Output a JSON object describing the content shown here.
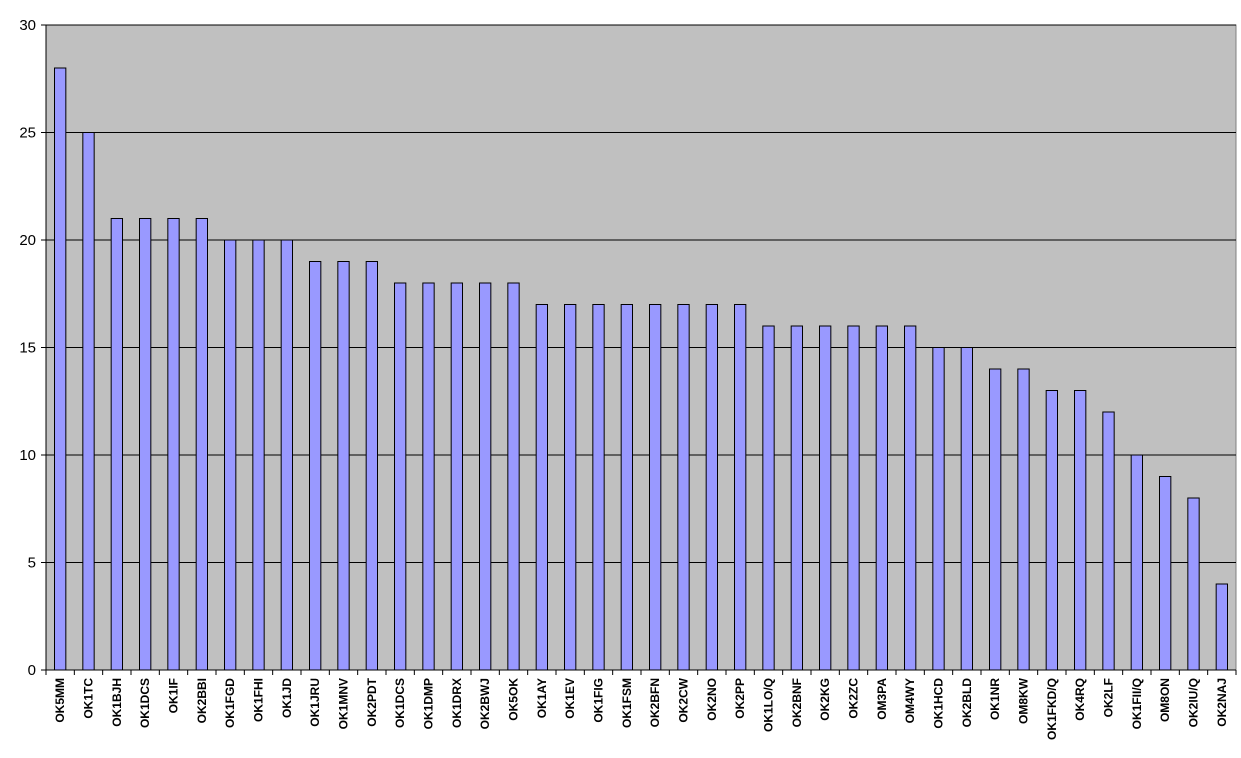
{
  "chart_data": {
    "type": "bar",
    "title": "",
    "xlabel": "",
    "ylabel": "",
    "ylim": [
      0,
      30
    ],
    "yticks": [
      0,
      5,
      10,
      15,
      20,
      25,
      30
    ],
    "grid": true,
    "legend": "none",
    "colors": {
      "plot_background": "#c0c0c0",
      "bar_fill": "#9999ff",
      "bar_stroke": "#000000",
      "gridline": "#000000"
    },
    "categories": [
      "OK5MM",
      "OK1TC",
      "OK1BJH",
      "OK1DCS",
      "OK1IF",
      "OK2BBI",
      "OK1FGD",
      "OK1FHI",
      "OK1JD",
      "OK1JRU",
      "OK1MNV",
      "OK2PDT",
      "OK1DCS",
      "OK1DMP",
      "OK1DRX",
      "OK2BWJ",
      "OK5OK",
      "OK1AY",
      "OK1EV",
      "OK1FIG",
      "OK1FSM",
      "OK2BFN",
      "OK2CW",
      "OK2NO",
      "OK2PP",
      "OK1LO/Q",
      "OK2BNF",
      "OK2KG",
      "OK2ZC",
      "OM3PA",
      "OM4WY",
      "OK1HCD",
      "OK2BLD",
      "OK1NR",
      "OM8KW",
      "OK1FKD/Q",
      "OK4RQ",
      "OK2LF",
      "OK1FII/Q",
      "OM8ON",
      "OK2IU/Q",
      "OK2NAJ"
    ],
    "values": [
      28,
      25,
      21,
      21,
      21,
      21,
      20,
      20,
      20,
      19,
      19,
      19,
      18,
      18,
      18,
      18,
      18,
      17,
      17,
      17,
      17,
      17,
      17,
      17,
      17,
      16,
      16,
      16,
      16,
      16,
      16,
      15,
      15,
      14,
      14,
      13,
      13,
      12,
      10,
      9,
      8,
      4
    ]
  }
}
